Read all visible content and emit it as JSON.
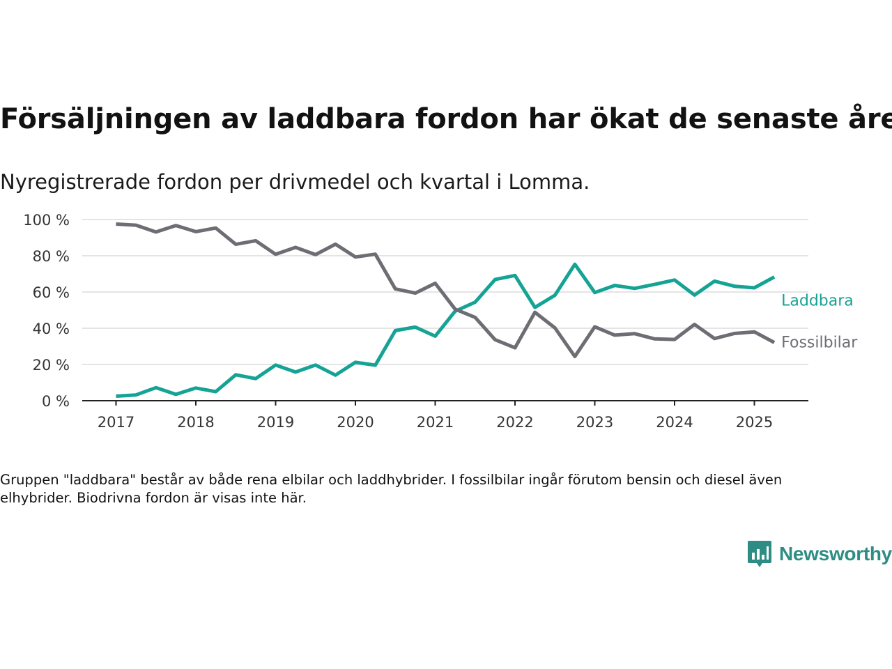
{
  "title": "Försäljningen av laddbara fordon har ökat de senaste åren",
  "subtitle": "Nyregistrerade fordon per drivmedel och kvartal i Lomma.",
  "footnote": "Gruppen \"laddbara\" består av både rena elbilar och laddhybrider. I fossilbilar ingår förutom bensin och diesel även elhybrider. Biodrivna fordon är visas inte här.",
  "logo": {
    "text": "Newsworthy",
    "icon": "newsworthy-logo-icon",
    "color": "#2d8c84"
  },
  "chart_data": {
    "type": "line",
    "x_start": 2017,
    "x_step_quarters": 1,
    "x_labels": [
      "2017",
      "2018",
      "2019",
      "2020",
      "2021",
      "2022",
      "2023",
      "2024",
      "2025"
    ],
    "y_ticks": [
      "0 %",
      "20 %",
      "40 %",
      "60 %",
      "80 %",
      "100 %"
    ],
    "ylim": [
      0,
      100
    ],
    "grid": true,
    "series": [
      {
        "name": "Laddbara",
        "color": "#14a394",
        "values": [
          2.5,
          3.2,
          7.2,
          3.5,
          7.0,
          5.0,
          14.3,
          12.2,
          19.7,
          15.8,
          19.7,
          14.1,
          21.2,
          19.6,
          38.7,
          40.6,
          35.6,
          49.4,
          54.4,
          66.9,
          69.1,
          51.5,
          58.2,
          75.3,
          59.7,
          63.6,
          62.0,
          64.2,
          66.6,
          58.3,
          66.0,
          63.2,
          62.3,
          68.3
        ]
      },
      {
        "name": "Fossilbilar",
        "color": "#6d6d74",
        "values": [
          97.5,
          96.9,
          93.1,
          96.7,
          93.3,
          95.3,
          86.3,
          88.3,
          80.8,
          84.6,
          80.6,
          86.4,
          79.3,
          80.9,
          61.7,
          59.4,
          64.8,
          50.5,
          46.0,
          33.7,
          29.2,
          48.8,
          40.2,
          24.4,
          40.8,
          36.2,
          37.0,
          34.1,
          33.8,
          42.1,
          34.3,
          37.1,
          38.0,
          32.1
        ]
      }
    ]
  }
}
